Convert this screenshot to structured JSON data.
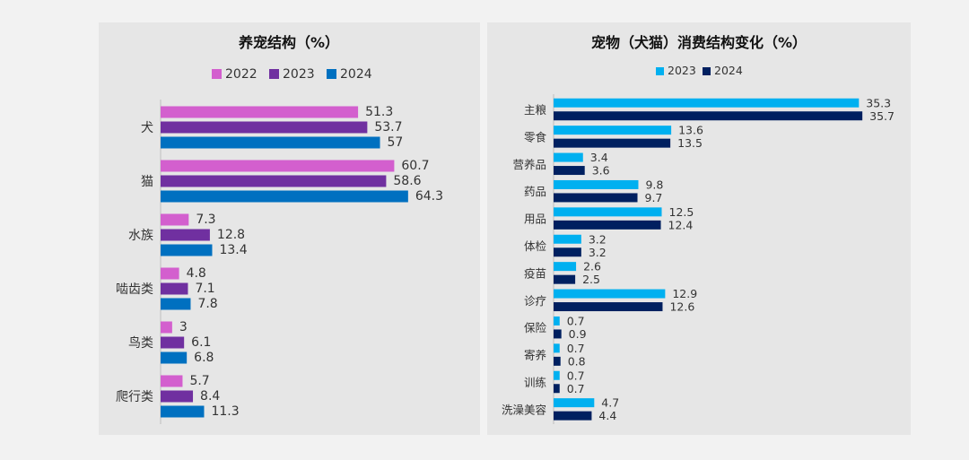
{
  "chart_data": [
    {
      "type": "bar",
      "orientation": "horizontal",
      "title": "养宠结构（%）",
      "categories": [
        "犬",
        "猫",
        "水族",
        "啮齿类",
        "鸟类",
        "爬行类"
      ],
      "series": [
        {
          "name": "2022",
          "color": "#d35fce",
          "values": [
            51.3,
            60.7,
            7.3,
            4.8,
            3,
            5.7
          ]
        },
        {
          "name": "2023",
          "color": "#7030a0",
          "values": [
            53.7,
            58.6,
            12.8,
            7.1,
            6.1,
            8.4
          ]
        },
        {
          "name": "2024",
          "color": "#0070c0",
          "values": [
            57,
            64.3,
            13.4,
            7.8,
            6.8,
            11.3
          ]
        }
      ],
      "legend_position": "top",
      "grid": false
    },
    {
      "type": "bar",
      "orientation": "horizontal",
      "title": "宠物（犬猫）消费结构变化（%）",
      "categories": [
        "主粮",
        "零食",
        "营养品",
        "药品",
        "用品",
        "体检",
        "疫苗",
        "诊疗",
        "保险",
        "寄养",
        "训练",
        "洗澡美容"
      ],
      "series": [
        {
          "name": "2023",
          "color": "#00b0f0",
          "values": [
            35.3,
            13.6,
            3.4,
            9.8,
            12.5,
            3.2,
            2.6,
            12.9,
            0.7,
            0.7,
            0.7,
            4.7
          ]
        },
        {
          "name": "2024",
          "color": "#002060",
          "values": [
            35.7,
            13.5,
            3.6,
            9.7,
            12.4,
            3.2,
            2.5,
            12.6,
            0.9,
            0.8,
            0.7,
            4.4
          ]
        }
      ],
      "legend_position": "top",
      "grid": false
    }
  ]
}
